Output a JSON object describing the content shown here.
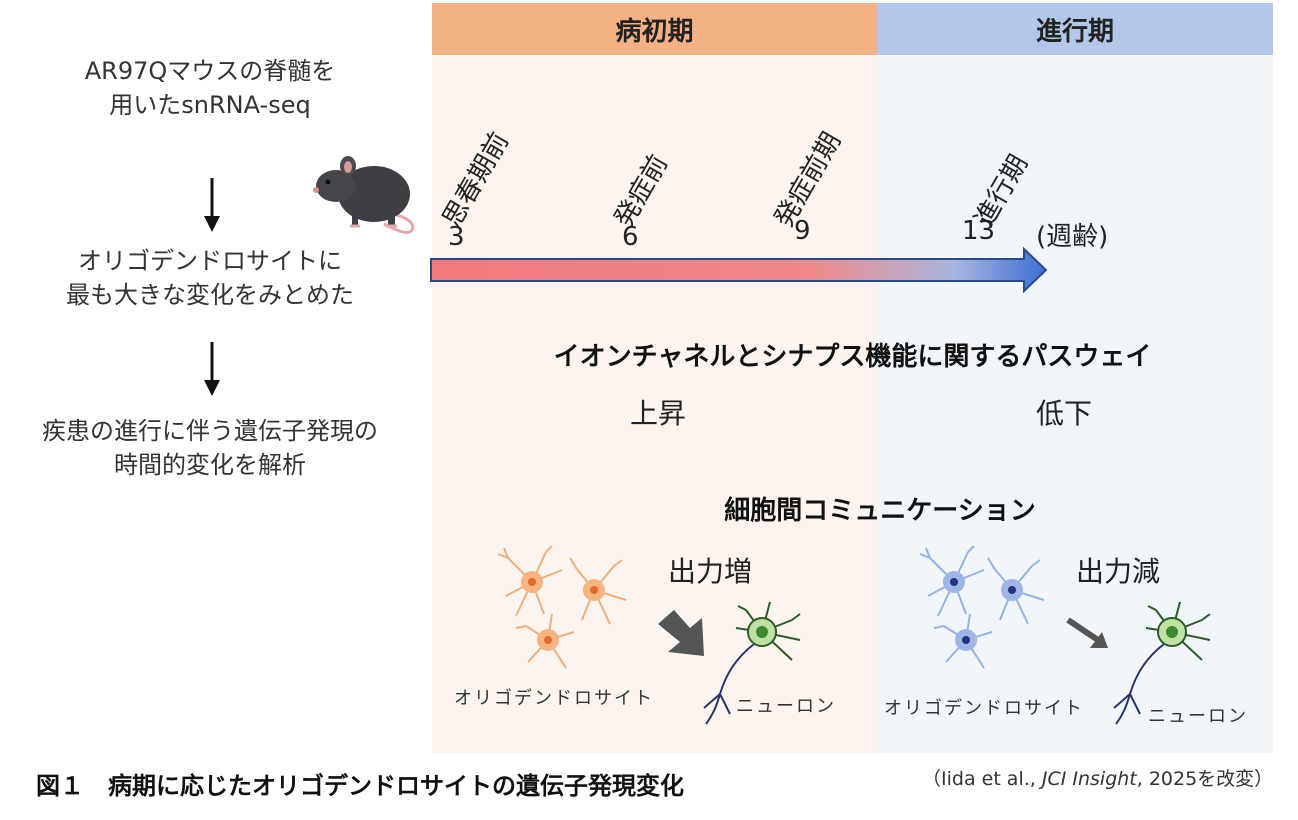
{
  "phases": {
    "early": "病初期",
    "late": "進行期"
  },
  "left_steps": {
    "step1_line1": "AR97Qマウスの脊髄を",
    "step1_line2": "用いたsnRNA-seq",
    "step2_line1": "オリゴデンドロサイトに",
    "step2_line2": "最も大きな変化をみとめた",
    "step3_line1": "疾患の進行に伴う遺伝子発現の",
    "step3_line2": "時間的変化を解析"
  },
  "timeline": {
    "stages": [
      "思春期前",
      "発症前",
      "発症前期",
      "進行期"
    ],
    "weeks": [
      "3",
      "6",
      "9",
      "13"
    ],
    "unit": "(週齢)"
  },
  "pathway": {
    "title": "イオンチャネルとシナプス機能に関するパスウェイ",
    "early": "上昇",
    "late": "低下"
  },
  "communication": {
    "title": "細胞間コミュニケーション",
    "early_label": "出力増",
    "late_label": "出力減",
    "oligo_label": "オリゴデンドロサイト",
    "neuron_label": "ニューロン"
  },
  "caption": "図１　病期に応じたオリゴデンドロサイトの遺伝子発現変化",
  "citation": {
    "prefix": "（Iida et al., ",
    "journal": "JCI Insight",
    "suffix": ", 2025を改変）"
  },
  "colors": {
    "early_header": "#f3b185",
    "late_header": "#b3c8e8",
    "early_panel": "#fcf5ef",
    "late_panel": "#f1f6fb",
    "arrow_start": "#f2787a",
    "arrow_end": "#3b6fd4",
    "oligo_early": "#f0a46a",
    "oligo_late": "#8fa8e0",
    "neuron": "#9fd07c"
  }
}
